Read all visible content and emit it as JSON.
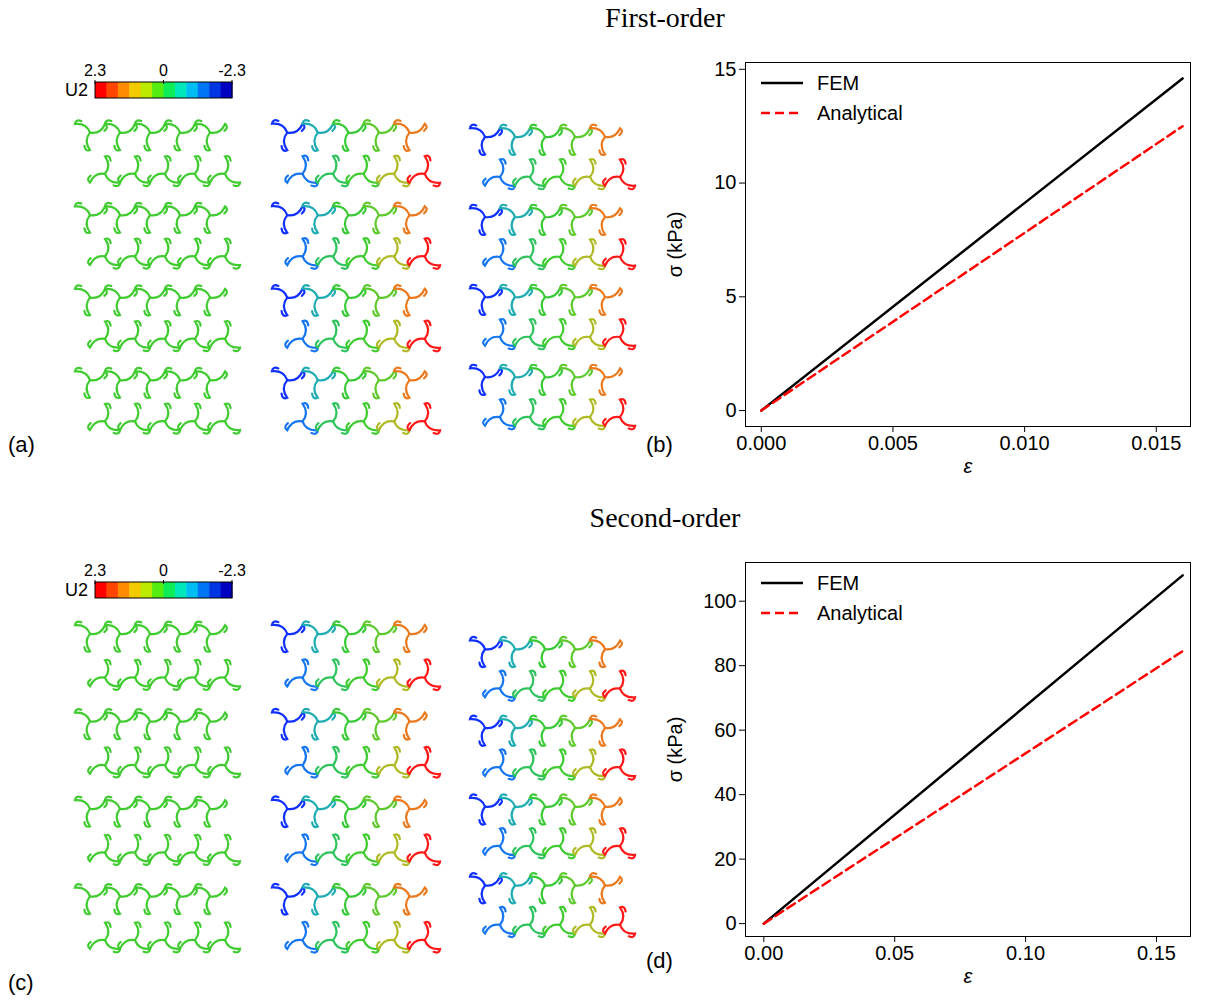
{
  "chart_data": [
    {
      "type": "contour",
      "section_title": "First-order",
      "panel_label": "(a)",
      "colorbar": {
        "label": "U2",
        "range": [
          2.3,
          -2.3
        ],
        "ticks": [
          2.3,
          0,
          -2.3
        ]
      }
    },
    {
      "type": "line",
      "section_title": "First-order",
      "panel_label": "(b)",
      "x_label": "ε",
      "y_label": "σ (kPa)",
      "x": [
        0,
        0.016
      ],
      "xlim": [
        -0.0006,
        0.0163
      ],
      "xticks": [
        {
          "value": 0,
          "label": "0.000"
        },
        {
          "value": 0.005,
          "label": "0.005"
        },
        {
          "value": 0.01,
          "label": "0.010"
        },
        {
          "value": 0.015,
          "label": "0.015"
        }
      ],
      "ylim": [
        -0.7,
        15.3
      ],
      "yticks": [
        0,
        5,
        10,
        15
      ],
      "legend": "upper left",
      "series": [
        {
          "name": "FEM",
          "color": "#000000",
          "line_style": "solid",
          "values": [
            0,
            14.6
          ]
        },
        {
          "name": "Analytical",
          "color": "#ff0000",
          "line_style": "dashed",
          "values": [
            0,
            12.5
          ]
        }
      ]
    },
    {
      "type": "contour",
      "section_title": "Second-order",
      "panel_label": "(c)",
      "colorbar": {
        "label": "U2",
        "range": [
          2.3,
          -2.3
        ],
        "ticks": [
          2.3,
          0,
          -2.3
        ]
      }
    },
    {
      "type": "line",
      "section_title": "Second-order",
      "panel_label": "(d)",
      "x_label": "ε",
      "y_label": "σ (kPa)",
      "x": [
        0,
        0.16
      ],
      "xlim": [
        -0.007,
        0.163
      ],
      "xticks": [
        {
          "value": 0,
          "label": "0.00"
        },
        {
          "value": 0.05,
          "label": "0.05"
        },
        {
          "value": 0.1,
          "label": "0.10"
        },
        {
          "value": 0.15,
          "label": "0.15"
        }
      ],
      "ylim": [
        -4,
        112
      ],
      "yticks": [
        0,
        20,
        40,
        60,
        80,
        100
      ],
      "legend": "upper left",
      "series": [
        {
          "name": "FEM",
          "color": "#000000",
          "line_style": "solid",
          "values": [
            0,
            108
          ]
        },
        {
          "name": "Analytical",
          "color": "#ff0000",
          "line_style": "dashed",
          "values": [
            0,
            84.5
          ]
        }
      ]
    }
  ]
}
